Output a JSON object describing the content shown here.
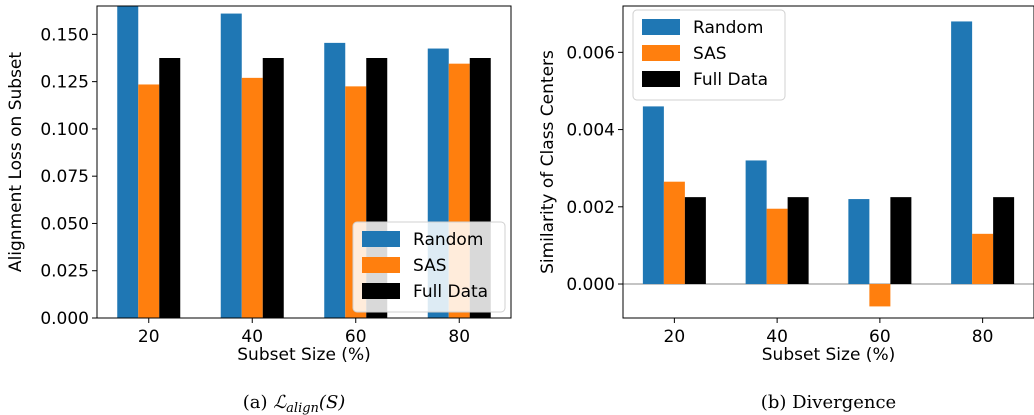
{
  "colors": {
    "random": "#1f77b4",
    "sas": "#ff7f0e",
    "full": "#000000"
  },
  "chart_data": [
    {
      "type": "bar",
      "caption": "(a) ℒalign(S)",
      "caption_prefix": "(a) ",
      "caption_main": "ℒ",
      "caption_sub": "align",
      "caption_arg": "(S)",
      "xlabel": "Subset Size (%)",
      "ylabel": "Alignment Loss on Subset",
      "categories": [
        "20",
        "40",
        "60",
        "80"
      ],
      "ylim": [
        0,
        0.165
      ],
      "yticks": [
        0.0,
        0.025,
        0.05,
        0.075,
        0.1,
        0.125,
        0.15
      ],
      "ytick_labels": [
        "0.000",
        "0.025",
        "0.050",
        "0.075",
        "0.100",
        "0.125",
        "0.150"
      ],
      "legend_placement": "lower-right",
      "series": [
        {
          "name": "Random",
          "values": [
            0.165,
            0.161,
            0.1455,
            0.1425
          ]
        },
        {
          "name": "SAS",
          "values": [
            0.1235,
            0.127,
            0.1225,
            0.1345
          ]
        },
        {
          "name": "Full Data",
          "values": [
            0.1375,
            0.1375,
            0.1375,
            0.1375
          ]
        }
      ]
    },
    {
      "type": "bar",
      "caption": "(b) Divergence",
      "xlabel": "Subset Size (%)",
      "ylabel": "Similarity of Class Centers",
      "categories": [
        "20",
        "40",
        "60",
        "80"
      ],
      "ylim": [
        -0.00088,
        0.0072
      ],
      "yticks": [
        0.0,
        0.002,
        0.004,
        0.006
      ],
      "ytick_labels": [
        "0.000",
        "0.002",
        "0.004",
        "0.006"
      ],
      "legend_placement": "upper-left",
      "series": [
        {
          "name": "Random",
          "values": [
            0.0046,
            0.0032,
            0.0022,
            0.0068
          ]
        },
        {
          "name": "SAS",
          "values": [
            0.00265,
            0.00195,
            -0.00058,
            0.0013
          ]
        },
        {
          "name": "Full Data",
          "values": [
            0.00225,
            0.00225,
            0.00225,
            0.00225
          ]
        }
      ]
    }
  ]
}
